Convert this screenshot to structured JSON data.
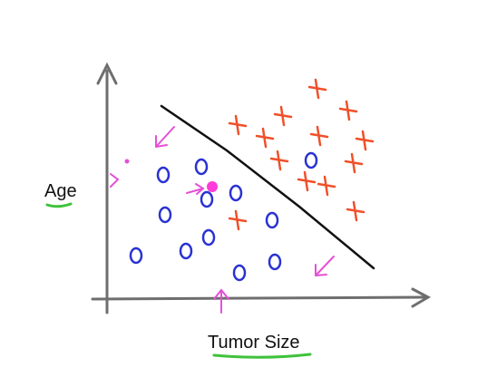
{
  "labels": {
    "y_axis": "Age",
    "x_axis": "Tumor Size"
  },
  "legend_symbols": {
    "cross": "x",
    "circle": "o"
  },
  "colors": {
    "axes": "#6e6e6e",
    "boundary": "#111111",
    "cross": "#f0502a",
    "circle": "#2a32d2",
    "arrow": "#e64fd6",
    "highlight": "#ff3bd9",
    "underline": "#3ec23a"
  },
  "icons": [
    "axis-arrow-up-icon",
    "axis-arrow-right-icon",
    "cross-marker-icon",
    "circle-marker-icon",
    "magenta-arrow-icon"
  ]
}
